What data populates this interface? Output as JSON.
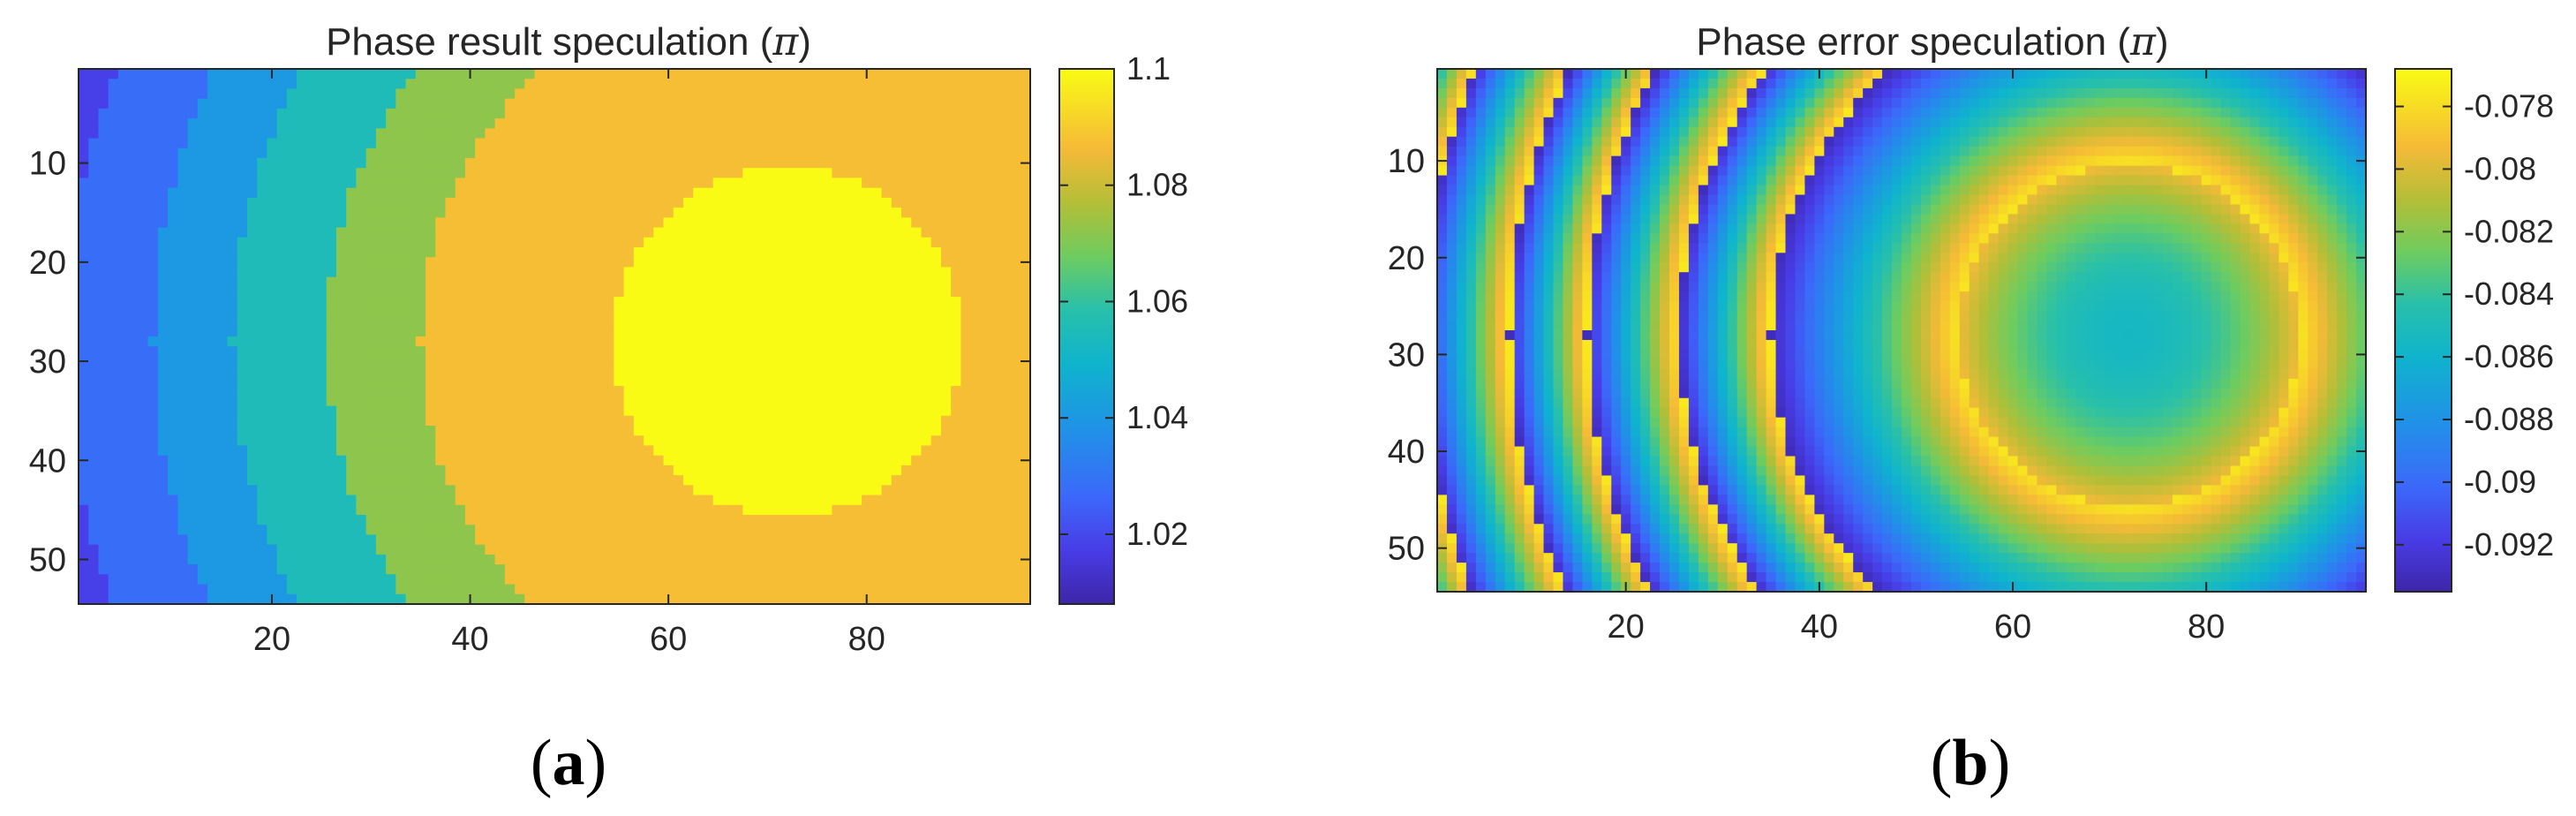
{
  "chart_data": [
    {
      "type": "heatmap",
      "panel_label": "a",
      "title": "Phase result speculation (π)",
      "title_text": "Phase result speculation (",
      "title_symbol": "π",
      "title_close": ")",
      "xlabel": "",
      "ylabel": "",
      "grid_cols": 96,
      "grid_rows": 54,
      "xlim": [
        0.5,
        96.5
      ],
      "ylim": [
        54.5,
        0.5
      ],
      "x_ticks": [
        20,
        40,
        60,
        80
      ],
      "y_ticks": [
        10,
        20,
        30,
        40,
        50
      ],
      "x_tick_labels": [
        "20",
        "40",
        "60",
        "80"
      ],
      "y_tick_labels": [
        "10",
        "20",
        "30",
        "40",
        "50"
      ],
      "colorbar": {
        "range": [
          1.008,
          1.1
        ],
        "ticks": [
          1.1,
          1.08,
          1.06,
          1.04,
          1.02
        ],
        "tick_labels": [
          "1.1",
          "1.08",
          "1.06",
          "1.04",
          "1.02"
        ]
      },
      "field": {
        "center_x": 72,
        "center_y": 28,
        "inner_disc_radius": 17.5,
        "inner_disc_value": 1.1,
        "ring_values": [
          1.087,
          1.072,
          1.055,
          1.04,
          1.028,
          1.018,
          1.008
        ],
        "ring_outer_radii": [
          37,
          46.5,
          56,
          64,
          73,
          80
        ]
      }
    },
    {
      "type": "heatmap",
      "panel_label": "b",
      "title": "Phase error speculation (π)",
      "title_text": "Phase error speculation (",
      "title_symbol": "π",
      "title_close": ")",
      "xlabel": "",
      "ylabel": "",
      "grid_cols": 96,
      "grid_rows": 54,
      "xlim": [
        0.5,
        96.5
      ],
      "ylim": [
        54.5,
        0.5
      ],
      "x_ticks": [
        20,
        40,
        60,
        80
      ],
      "y_ticks": [
        10,
        20,
        30,
        40,
        50
      ],
      "x_tick_labels": [
        "20",
        "40",
        "60",
        "80"
      ],
      "y_tick_labels": [
        "10",
        "20",
        "30",
        "40",
        "50"
      ],
      "colorbar": {
        "range": [
          -0.0935,
          -0.0768
        ],
        "ticks": [
          -0.078,
          -0.08,
          -0.082,
          -0.084,
          -0.086,
          -0.088,
          -0.09,
          -0.092
        ],
        "tick_labels": [
          "-0.078",
          "-0.08",
          "-0.082",
          "-0.084",
          "-0.086",
          "-0.088",
          "-0.09",
          "-0.092"
        ]
      },
      "field": {
        "center_x": 72,
        "center_y": 28,
        "inner_disc_radius": 17.5,
        "inner_disc_center_value": -0.0855,
        "inner_disc_edge_value": -0.0795,
        "band_edges": [
          17.5,
          37,
          46.5,
          56,
          64,
          73,
          80,
          100
        ],
        "band_inner_value": -0.0775,
        "band_outer_value": -0.093
      }
    }
  ]
}
